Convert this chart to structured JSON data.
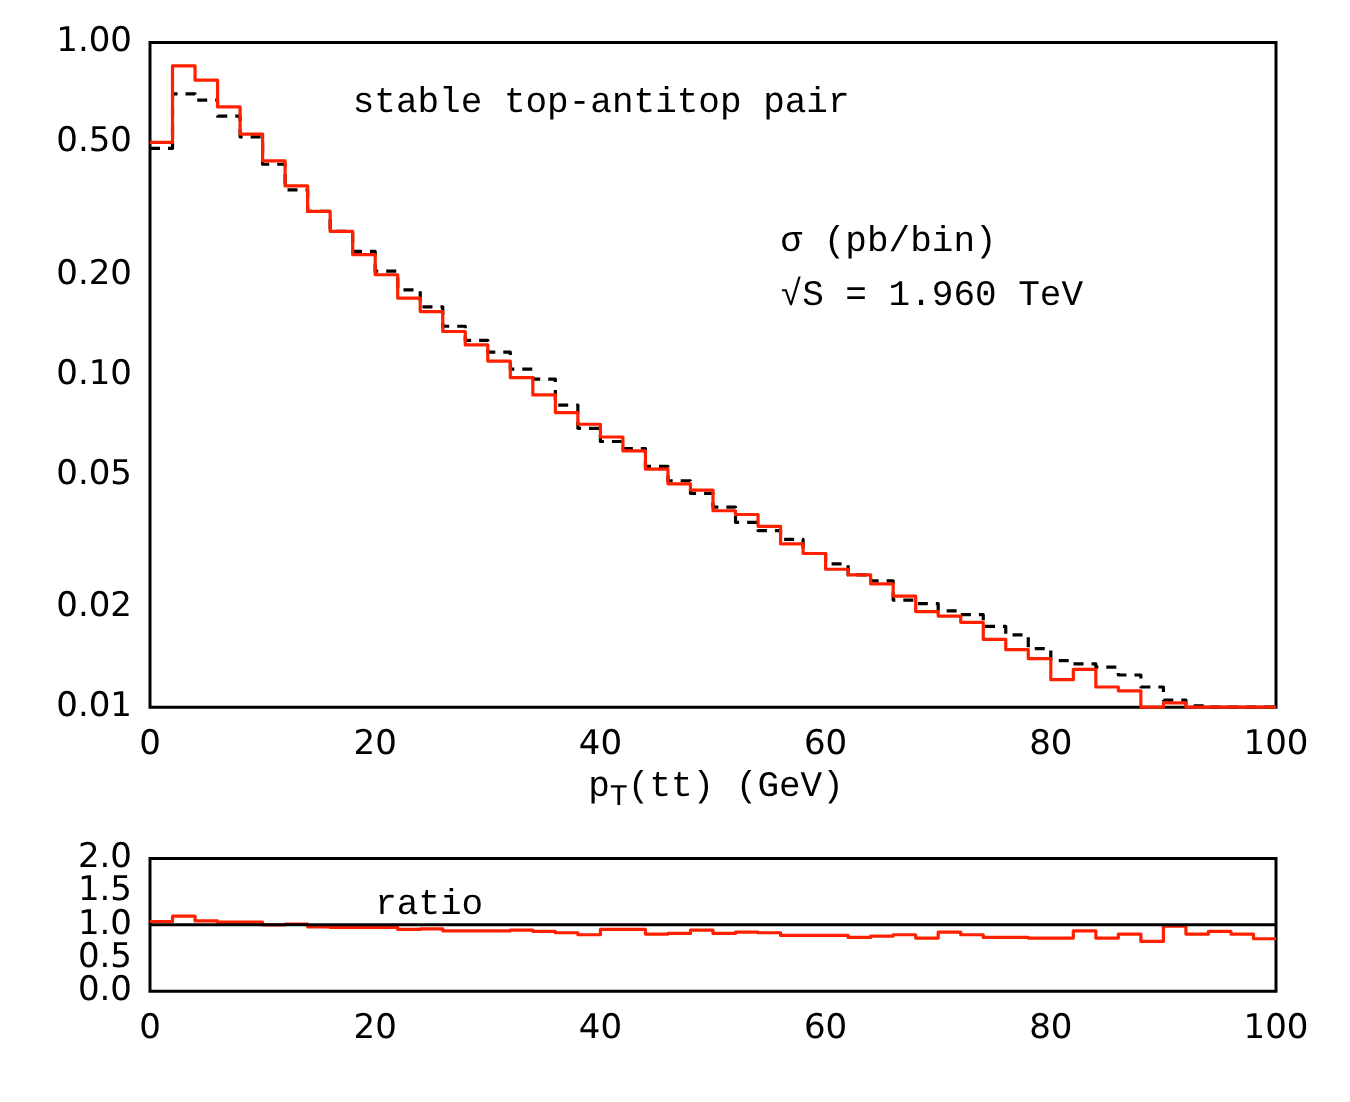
{
  "chart_data": [
    {
      "type": "histogram",
      "xlabel": "p$_{T}$(tt) (GeV)",
      "annotations": [
        "stable top-antitop pair",
        "σ (pb/bin)",
        "√S = 1.960 TeV"
      ],
      "bins": [
        0,
        2,
        4,
        6,
        8,
        10,
        12,
        14,
        16,
        18,
        20,
        22,
        24,
        26,
        28,
        30,
        32,
        34,
        36,
        38,
        40,
        42,
        44,
        46,
        48,
        50,
        52,
        54,
        56,
        58,
        60,
        62,
        64,
        66,
        68,
        70,
        72,
        74,
        76,
        78,
        80,
        82,
        84,
        86,
        88,
        90,
        92,
        94,
        96,
        98,
        100
      ],
      "series": [
        {
          "color": "#ff2000",
          "line_style": "solid",
          "values": [
            0.5,
            0.85,
            0.77,
            0.64,
            0.53,
            0.44,
            0.37,
            0.31,
            0.27,
            0.23,
            0.2,
            0.17,
            0.155,
            0.135,
            0.123,
            0.11,
            0.098,
            0.087,
            0.077,
            0.071,
            0.065,
            0.059,
            0.052,
            0.047,
            0.045,
            0.039,
            0.038,
            0.035,
            0.031,
            0.029,
            0.026,
            0.025,
            0.0235,
            0.0216,
            0.0194,
            0.0188,
            0.018,
            0.016,
            0.0149,
            0.014,
            0.0121,
            0.013,
            0.0115,
            0.0112,
            0.01,
            0.0103,
            0.01,
            0.01,
            0.01,
            0.01
          ]
        },
        {
          "color": "#000000",
          "line_style": "dashed",
          "values": [
            0.48,
            0.7,
            0.67,
            0.6,
            0.52,
            0.43,
            0.36,
            0.31,
            0.27,
            0.235,
            0.205,
            0.18,
            0.16,
            0.14,
            0.127,
            0.117,
            0.104,
            0.097,
            0.081,
            0.069,
            0.063,
            0.06,
            0.053,
            0.048,
            0.044,
            0.04,
            0.036,
            0.034,
            0.032,
            0.029,
            0.027,
            0.025,
            0.024,
            0.021,
            0.0205,
            0.0195,
            0.019,
            0.0175,
            0.0165,
            0.015,
            0.0138,
            0.0135,
            0.0132,
            0.0125,
            0.0115,
            0.0105,
            0.0101,
            0.01,
            0.01,
            0.01
          ]
        }
      ],
      "log": "y",
      "xlim": [
        0,
        100
      ],
      "xticks": [
        0,
        20,
        40,
        60,
        80,
        100
      ],
      "ylim": [
        0.01,
        1
      ],
      "yticks": [
        0.01,
        0.02,
        0.05,
        {
          "value": 0.1,
          "label": "0.10"
        },
        {
          "value": 0.2,
          "label": "0.20"
        },
        {
          "value": 0.5,
          "label": "0.50"
        },
        {
          "value": 1,
          "label": "1.00"
        }
      ],
      "legend": false,
      "grid": false
    },
    {
      "type": "histogram",
      "annotations": [
        "ratio"
      ],
      "bins": [
        0,
        2,
        4,
        6,
        8,
        10,
        12,
        14,
        16,
        18,
        20,
        22,
        24,
        26,
        28,
        30,
        32,
        34,
        36,
        38,
        40,
        42,
        44,
        46,
        48,
        50,
        52,
        54,
        56,
        58,
        60,
        62,
        64,
        66,
        68,
        70,
        72,
        74,
        76,
        78,
        80,
        82,
        84,
        86,
        88,
        90,
        92,
        94,
        96,
        98,
        100
      ],
      "series": [
        {
          "color": "#ff2000",
          "line_style": "solid",
          "values": [
            1.05,
            1.13,
            1.06,
            1.04,
            1.04,
            1.0,
            1.01,
            0.97,
            0.96,
            0.96,
            0.96,
            0.93,
            0.94,
            0.91,
            0.91,
            0.91,
            0.92,
            0.9,
            0.88,
            0.85,
            0.93,
            0.93,
            0.86,
            0.87,
            0.92,
            0.87,
            0.89,
            0.88,
            0.84,
            0.84,
            0.84,
            0.81,
            0.83,
            0.85,
            0.8,
            0.89,
            0.85,
            0.81,
            0.81,
            0.8,
            0.8,
            0.91,
            0.8,
            0.86,
            0.75,
            0.98,
            0.86,
            0.9,
            0.86,
            0.79
          ]
        }
      ],
      "ref_lines": [
        {
          "axis": "y",
          "value": 1,
          "color": "#000000"
        }
      ],
      "xlim": [
        0,
        100
      ],
      "xticks": [
        0,
        20,
        40,
        60,
        80,
        100
      ],
      "ylim": [
        0,
        2
      ],
      "yticks": [
        {
          "value": 0,
          "label": "0.0"
        },
        {
          "value": 0.5,
          "label": "0.5"
        },
        {
          "value": 1,
          "label": "1.0"
        },
        {
          "value": 1.5,
          "label": "1.5"
        },
        {
          "value": 2,
          "label": "2.0"
        }
      ],
      "legend": false,
      "grid": false
    }
  ]
}
